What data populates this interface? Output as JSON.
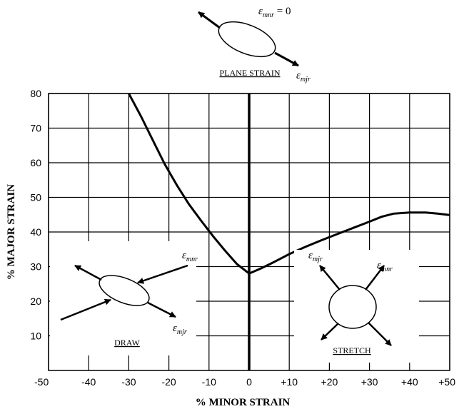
{
  "chart_data": {
    "type": "line",
    "xlabel": "% MINOR STRAIN",
    "ylabel": "% MAJOR STRAIN",
    "xlim": [
      -50,
      50
    ],
    "ylim": [
      0,
      80
    ],
    "x_ticks": [
      "-50",
      "-40",
      "-30",
      "-20",
      "-10",
      "0",
      "+10",
      "+20",
      "+30",
      "+40",
      "+50"
    ],
    "y_ticks": [
      "10",
      "20",
      "30",
      "40",
      "50",
      "60",
      "70",
      "80"
    ],
    "grid": true,
    "series": [
      {
        "x": [
          -30,
          -27,
          -24,
          -21,
          -18,
          -15,
          -12,
          -9,
          -6,
          -3,
          0,
          3,
          6,
          10,
          14,
          18,
          22,
          26,
          30,
          33,
          36,
          40,
          44,
          47,
          50
        ],
        "y": [
          80,
          73.5,
          66.5,
          59.5,
          53.5,
          48,
          43.3,
          38.8,
          34.6,
          30.7,
          28,
          29.5,
          31.2,
          33.6,
          35.7,
          37.6,
          39.4,
          41.2,
          43,
          44.4,
          45.3,
          45.6,
          45.6,
          45.3,
          44.9
        ]
      }
    ]
  },
  "annotations": {
    "plane_strain": {
      "label": "PLANE STRAIN",
      "eq_symbol": "ε",
      "eq_subscript": "mnr",
      "eq_rest": " = 0",
      "sym": "ε",
      "sub": "mjr"
    },
    "draw": {
      "label": "DRAW",
      "sym_top": "ε",
      "sub_top": "mnr",
      "sym_bottom": "ε",
      "sub_bottom": "mjr"
    },
    "stretch": {
      "label": "STRETCH",
      "sym_left": "ε",
      "sub_left": "mjr",
      "sym_right": "ε",
      "sub_right": "mnr"
    }
  }
}
